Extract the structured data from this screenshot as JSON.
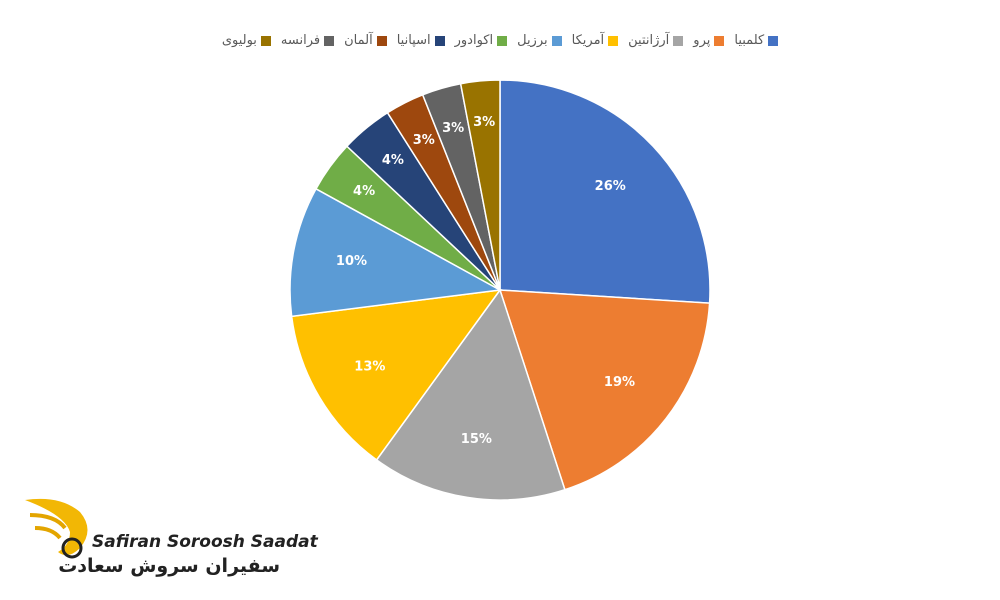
{
  "chart_data": {
    "type": "pie",
    "categories": [
      "کلمبیا",
      "پرو",
      "آرژانتین",
      "آمریکا",
      "برزیل",
      "اکوادور",
      "اسپانیا",
      "آلمان",
      "فرانسه",
      "بولیوی"
    ],
    "values": [
      26,
      19,
      15,
      13,
      10,
      4,
      4,
      3,
      3,
      3
    ],
    "value_labels": [
      "26%",
      "19%",
      "15%",
      "13%",
      "10%",
      "4%",
      "4%",
      "3%",
      "3%",
      "3%"
    ],
    "colors": [
      "#4472c4",
      "#ed7d31",
      "#a5a5a5",
      "#ffc000",
      "#5b9bd5",
      "#70ad47",
      "#264478",
      "#9e480e",
      "#636363",
      "#997300"
    ],
    "legend": "top"
  },
  "logo": {
    "text_en": "Safiran Soroosh Saadat",
    "text_fa": "سفیران سروش سعادت"
  }
}
